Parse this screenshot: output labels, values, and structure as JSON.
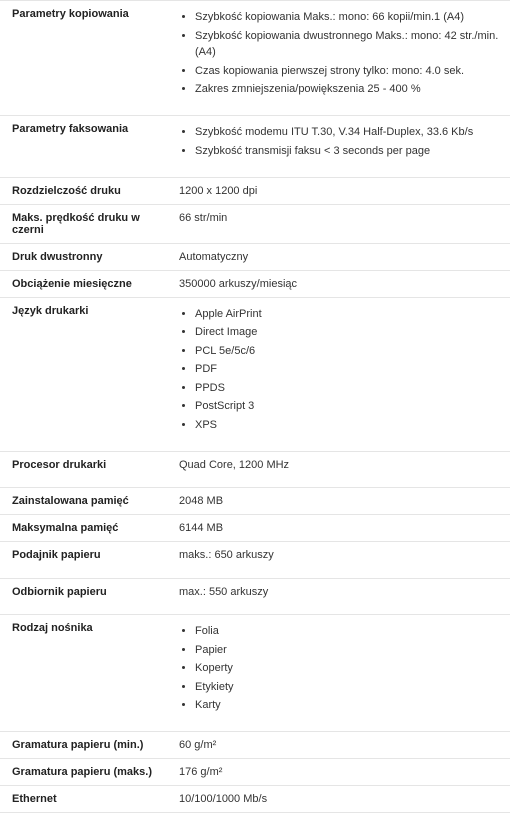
{
  "rows": [
    {
      "label": "Parametry kopiowania",
      "type": "list",
      "items": [
        "Szybkość kopiowania Maks.: mono: 66 kopii/min.1 (A4)",
        "Szybkość kopiowania dwustronnego Maks.: mono: 42 str./min. (A4)",
        "Czas kopiowania pierwszej strony tylko: mono: 4.0 sek.",
        "Zakres zmniejszenia/powiększenia 25 - 400 %"
      ],
      "spacerAfter": true
    },
    {
      "label": "Parametry faksowania",
      "type": "list",
      "items": [
        "Szybkość modemu ITU T.30, V.34 Half-Duplex, 33.6 Kb/s",
        "Szybkość transmisji faksu < 3 seconds per page"
      ],
      "spacerAfter": true
    },
    {
      "label": "Rozdzielczość druku",
      "type": "text",
      "value": "1200 x 1200 dpi"
    },
    {
      "label": "Maks. prędkość druku w czerni",
      "type": "text",
      "value": "66 str/min"
    },
    {
      "label": "Druk dwustronny",
      "type": "text",
      "value": "Automatyczny"
    },
    {
      "label": "Obciążenie miesięczne",
      "type": "text",
      "value": "350000 arkuszy/miesiąc"
    },
    {
      "label": "Język drukarki",
      "type": "list",
      "items": [
        "Apple AirPrint",
        "Direct Image",
        "PCL 5e/5c/6",
        "PDF",
        "PPDS",
        "PostScript 3",
        "XPS"
      ],
      "spacerAfter": true
    },
    {
      "label": "Procesor drukarki",
      "type": "text",
      "value": "Quad Core, 1200 MHz",
      "spacerAfter": true
    },
    {
      "label": "Zainstalowana pamięć",
      "type": "text",
      "value": "2048 MB"
    },
    {
      "label": "Maksymalna pamięć",
      "type": "text",
      "value": "6144 MB"
    },
    {
      "label": "Podajnik papieru",
      "type": "text",
      "value": "maks.: 650 arkuszy",
      "spacerAfter": true
    },
    {
      "label": "Odbiornik papieru",
      "type": "text",
      "value": "max.: 550 arkuszy",
      "spacerAfter": true
    },
    {
      "label": "Rodzaj nośnika",
      "type": "list",
      "items": [
        "Folia",
        "Papier",
        "Koperty",
        "Etykiety",
        "Karty"
      ],
      "spacerAfter": true
    },
    {
      "label": "Gramatura papieru (min.)",
      "type": "text",
      "value": "60 g/m²"
    },
    {
      "label": "Gramatura papieru (maks.)",
      "type": "text",
      "value": "176 g/m²"
    },
    {
      "label": "Ethernet",
      "type": "text",
      "value": "10/100/1000 Mb/s"
    }
  ]
}
